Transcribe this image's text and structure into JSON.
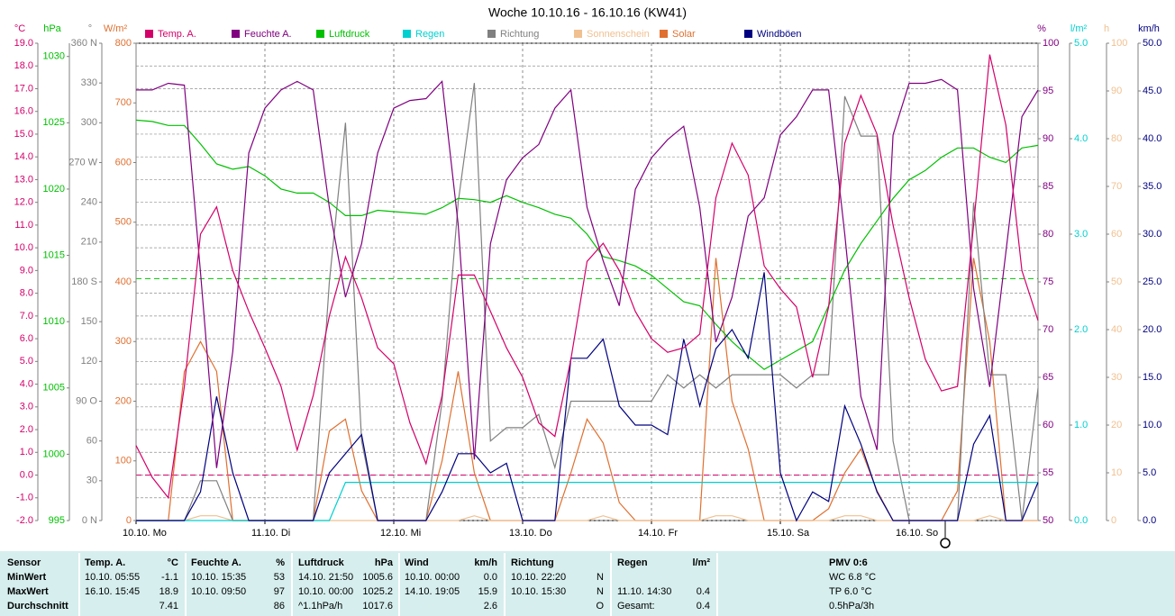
{
  "chart_data": {
    "type": "line",
    "title": "Woche 10.10.16 - 16.10.16 (KW41)",
    "grid": true,
    "x": [
      "10.10. 00:00",
      "10.10. 03:00",
      "10.10. 06:00",
      "10.10. 09:00",
      "10.10. 12:00",
      "10.10. 15:00",
      "10.10. 18:00",
      "10.10. 21:00",
      "11.10. 00:00",
      "11.10. 03:00",
      "11.10. 06:00",
      "11.10. 09:00",
      "11.10. 12:00",
      "11.10. 15:00",
      "11.10. 18:00",
      "11.10. 21:00",
      "12.10. 00:00",
      "12.10. 03:00",
      "12.10. 06:00",
      "12.10. 09:00",
      "12.10. 12:00",
      "12.10. 15:00",
      "12.10. 18:00",
      "12.10. 21:00",
      "13.10. 00:00",
      "13.10. 03:00",
      "13.10. 06:00",
      "13.10. 09:00",
      "13.10. 12:00",
      "13.10. 15:00",
      "13.10. 18:00",
      "13.10. 21:00",
      "14.10. 00:00",
      "14.10. 03:00",
      "14.10. 06:00",
      "14.10. 09:00",
      "14.10. 12:00",
      "14.10. 15:00",
      "14.10. 18:00",
      "14.10. 21:00",
      "15.10. 00:00",
      "15.10. 03:00",
      "15.10. 06:00",
      "15.10. 09:00",
      "15.10. 12:00",
      "15.10. 15:00",
      "15.10. 18:00",
      "15.10. 21:00",
      "16.10. 00:00",
      "16.10. 03:00",
      "16.10. 06:00",
      "16.10. 09:00",
      "16.10. 12:00",
      "16.10. 15:00",
      "16.10. 18:00",
      "16.10. 21:00",
      "16.10. 24:00"
    ],
    "xlim": [
      "10.10. 00:00",
      "16.10. 24:00"
    ],
    "xticks": [
      {
        "value": "10.10. 00:00",
        "label": "10.10. Mo"
      },
      {
        "value": "11.10. 00:00",
        "label": "11.10. Di"
      },
      {
        "value": "12.10. 00:00",
        "label": "12.10. Mi"
      },
      {
        "value": "13.10. 00:00",
        "label": "13.10. Do"
      },
      {
        "value": "14.10. 00:00",
        "label": "14.10. Fr"
      },
      {
        "value": "15.10. 00:00",
        "label": "15.10. Sa"
      },
      {
        "value": "16.10. 00:00",
        "label": "16.10. So"
      }
    ],
    "series": [
      {
        "name": "Temp. A.",
        "unit": "°C",
        "color": "#d4006a",
        "lim": [
          -2,
          19
        ],
        "ref_line": 0,
        "ticks": [
          {
            "value": -2,
            "label": "-2.0"
          },
          {
            "value": -1,
            "label": "-1.0"
          },
          {
            "value": 0,
            "label": "0.0"
          },
          {
            "value": 1,
            "label": "1.0"
          },
          {
            "value": 2,
            "label": "2.0"
          },
          {
            "value": 3,
            "label": "3.0"
          },
          {
            "value": 4,
            "label": "4.0"
          },
          {
            "value": 5,
            "label": "5.0"
          },
          {
            "value": 6,
            "label": "6.0"
          },
          {
            "value": 7,
            "label": "7.0"
          },
          {
            "value": 8,
            "label": "8.0"
          },
          {
            "value": 9,
            "label": "9.0"
          },
          {
            "value": 10,
            "label": "10.0"
          },
          {
            "value": 11,
            "label": "11.0"
          },
          {
            "value": 12,
            "label": "12.0"
          },
          {
            "value": 13,
            "label": "13.0"
          },
          {
            "value": 14,
            "label": "14.0"
          },
          {
            "value": 15,
            "label": "15.0"
          },
          {
            "value": 16,
            "label": "16.0"
          },
          {
            "value": 17,
            "label": "17.0"
          },
          {
            "value": 18,
            "label": "18.0"
          },
          {
            "value": 19,
            "label": "19.0"
          }
        ],
        "values": [
          1.3,
          -0.1,
          -1.0,
          3.9,
          10.6,
          11.8,
          9.0,
          7.2,
          5.6,
          3.9,
          1.1,
          3.5,
          7.0,
          9.6,
          7.8,
          5.6,
          4.9,
          2.3,
          0.5,
          3.5,
          8.8,
          8.8,
          7.2,
          5.6,
          4.3,
          2.3,
          1.7,
          5.1,
          9.4,
          10.2,
          9.0,
          7.2,
          6.0,
          5.4,
          5.6,
          6.2,
          12.2,
          14.6,
          13.2,
          9.2,
          8.2,
          7.4,
          4.3,
          7.4,
          14.6,
          16.7,
          15.0,
          11.0,
          7.8,
          5.1,
          3.7,
          3.9,
          11.0,
          18.5,
          15.4,
          9.0,
          6.8
        ]
      },
      {
        "name": "Feuchte A.",
        "unit": "%",
        "color": "#800080",
        "lim": [
          50,
          100
        ],
        "ticks": [
          50,
          55,
          60,
          65,
          70,
          75,
          80,
          85,
          90,
          95,
          100
        ],
        "values": [
          95.1,
          95.1,
          95.8,
          95.6,
          76,
          55.5,
          67.7,
          88.5,
          93.2,
          95.1,
          96,
          95.1,
          82.8,
          73.4,
          79,
          88.5,
          93.2,
          94,
          94.2,
          96,
          81,
          56.4,
          79,
          85.7,
          88,
          89.4,
          93.2,
          95.1,
          82.8,
          77.2,
          72.5,
          84.7,
          88,
          89.9,
          91.3,
          82.8,
          68.7,
          73.4,
          81.9,
          83.8,
          90.4,
          92.3,
          95.1,
          95.1,
          80,
          63,
          57.4,
          90.4,
          95.8,
          95.8,
          96.2,
          95.1,
          74.3,
          64,
          78.1,
          92.3,
          95.1
        ]
      },
      {
        "name": "Luftdruck",
        "unit": "hPa",
        "color": "#00c000",
        "lim": [
          995,
          1031
        ],
        "ref_line": 1013.25,
        "ticks": [
          995,
          1000,
          1005,
          1010,
          1015,
          1020,
          1025,
          1030
        ],
        "values": [
          1025.2,
          1025.1,
          1024.8,
          1024.8,
          1023.4,
          1021.9,
          1021.5,
          1021.7,
          1021.0,
          1020.0,
          1019.7,
          1019.7,
          1019.0,
          1018.0,
          1018.0,
          1018.4,
          1018.3,
          1018.2,
          1018.1,
          1018.6,
          1019.3,
          1019.2,
          1019.0,
          1019.5,
          1019.0,
          1018.6,
          1018.1,
          1017.8,
          1016.6,
          1014.9,
          1014.6,
          1014.2,
          1013.5,
          1012.5,
          1011.5,
          1011.2,
          1009.8,
          1008.5,
          1007.4,
          1006.4,
          1007.1,
          1007.8,
          1008.5,
          1011.2,
          1013.9,
          1015.9,
          1017.6,
          1019.3,
          1020.7,
          1021.4,
          1022.4,
          1023.1,
          1023.1,
          1022.4,
          1022.0,
          1023.1,
          1023.3
        ]
      },
      {
        "name": "Regen",
        "unit": "l/m²",
        "color": "#00d0d0",
        "lim": [
          0,
          5
        ],
        "ticks": [
          {
            "value": 0,
            "label": "0.0"
          },
          {
            "value": 1,
            "label": "1.0"
          },
          {
            "value": 2,
            "label": "2.0"
          },
          {
            "value": 3,
            "label": "3.0"
          },
          {
            "value": 4,
            "label": "4.0"
          },
          {
            "value": 5,
            "label": "5.0"
          }
        ],
        "values": [
          0,
          0,
          0,
          0,
          0,
          0,
          0,
          0,
          0,
          0,
          0,
          0,
          0,
          0.4,
          0.4,
          0.4,
          0.4,
          0.4,
          0.4,
          0.4,
          0.4,
          0.4,
          0.4,
          0.4,
          0.4,
          0.4,
          0.4,
          0.4,
          0.4,
          0.4,
          0.4,
          0.4,
          0.4,
          0.4,
          0.4,
          0.4,
          0.4,
          0.4,
          0.4,
          0.4,
          0.4,
          0.4,
          0.4,
          0.4,
          0.4,
          0.4,
          0.4,
          0.4,
          0.4,
          0.4,
          0.4,
          0.4,
          0.4,
          0.4,
          0.4,
          0.4,
          0.4
        ]
      },
      {
        "name": "Richtung",
        "unit": "°",
        "color": "#808080",
        "lim": [
          0,
          360
        ],
        "ticks": [
          {
            "value": 0,
            "label": "0 N"
          },
          30,
          60,
          {
            "value": 90,
            "label": "90 O"
          },
          120,
          150,
          {
            "value": 180,
            "label": "180 S"
          },
          210,
          240,
          {
            "value": 270,
            "label": "270 W"
          },
          300,
          330,
          {
            "value": 360,
            "label": "360 N"
          }
        ],
        "values": [
          0,
          0,
          0,
          0,
          30,
          30,
          0,
          0,
          0,
          0,
          0,
          0,
          180,
          300,
          60,
          0,
          0,
          0,
          0,
          90,
          240,
          330,
          60,
          70,
          70,
          80,
          40,
          90,
          90,
          90,
          90,
          90,
          90,
          110,
          100,
          110,
          100,
          110,
          110,
          110,
          110,
          100,
          110,
          110,
          320,
          290,
          290,
          60,
          0,
          0,
          0,
          0,
          240,
          110,
          110,
          0,
          100
        ]
      },
      {
        "name": "Sonnenschein",
        "unit": "h",
        "color": "#f0c090",
        "lim": [
          0,
          100
        ],
        "ticks": [
          0,
          10,
          20,
          30,
          40,
          50,
          60,
          70,
          80,
          90,
          100
        ],
        "values": [
          0,
          0,
          0,
          0,
          1,
          1,
          0,
          0,
          0,
          0,
          0,
          0,
          0,
          0,
          0,
          0,
          0,
          0,
          0,
          0,
          0,
          1,
          0,
          0,
          0,
          0,
          0,
          0,
          0,
          1,
          0,
          0,
          0,
          0,
          0,
          0,
          1,
          1,
          0,
          0,
          0,
          0,
          0,
          0,
          1,
          1,
          0,
          0,
          0,
          0,
          0,
          0,
          0,
          1,
          0,
          0,
          0
        ]
      },
      {
        "name": "Solar",
        "unit": "W/m²",
        "color": "#e07030",
        "lim": [
          0,
          800
        ],
        "ticks": [
          0,
          100,
          200,
          300,
          400,
          500,
          600,
          700,
          800
        ],
        "values": [
          0,
          0,
          0,
          250,
          300,
          250,
          0,
          0,
          0,
          0,
          0,
          0,
          150,
          170,
          50,
          0,
          0,
          0,
          0,
          100,
          250,
          80,
          0,
          0,
          0,
          0,
          0,
          80,
          170,
          130,
          30,
          0,
          0,
          0,
          0,
          0,
          440,
          200,
          120,
          0,
          0,
          0,
          0,
          20,
          80,
          120,
          50,
          0,
          0,
          0,
          0,
          50,
          440,
          300,
          0,
          0,
          0
        ]
      },
      {
        "name": "Windböen",
        "unit": "km/h",
        "color": "#000080",
        "lim": [
          0,
          50
        ],
        "ticks": [
          {
            "value": 0,
            "label": "0.0"
          },
          {
            "value": 5,
            "label": "5.0"
          },
          {
            "value": 10,
            "label": "10.0"
          },
          {
            "value": 15,
            "label": "15.0"
          },
          {
            "value": 20,
            "label": "20.0"
          },
          {
            "value": 25,
            "label": "25.0"
          },
          {
            "value": 30,
            "label": "30.0"
          },
          {
            "value": 35,
            "label": "35.0"
          },
          {
            "value": 40,
            "label": "40.0"
          },
          {
            "value": 45,
            "label": "45.0"
          },
          {
            "value": 50,
            "label": "50.0"
          }
        ],
        "values": [
          0,
          0,
          0,
          0,
          3,
          13,
          5,
          0,
          0,
          0,
          0,
          0,
          5,
          7,
          9,
          0,
          0,
          0,
          0,
          3,
          7,
          7,
          5,
          6,
          0,
          0,
          0,
          17,
          17,
          19,
          12,
          10,
          10,
          9,
          19,
          12,
          18,
          20,
          17,
          26,
          5,
          0,
          3,
          2,
          12,
          8,
          3,
          0,
          0,
          0,
          0,
          0,
          8,
          11,
          0,
          0,
          4
        ]
      }
    ]
  },
  "table": {
    "sensor_label": "Sensor",
    "columns": [
      {
        "title": "Temp. A.",
        "unit": "°C"
      },
      {
        "title": "Feuchte A.",
        "unit": "%"
      },
      {
        "title": "Luftdruck",
        "unit": "hPa"
      },
      {
        "title": "Wind",
        "unit": "km/h"
      },
      {
        "title": "Richtung"
      },
      {
        "title": "Regen",
        "unit": "l/m²"
      },
      {
        "title": "PMV 0:6"
      }
    ],
    "rows": [
      {
        "label": "MinWert",
        "cells": [
          [
            "10.10. 05:55",
            "-1.1"
          ],
          [
            "10.10. 15:35",
            "53"
          ],
          [
            "14.10. 21:50",
            "1005.6"
          ],
          [
            "10.10. 00:00",
            "0.0"
          ],
          [
            "10.10. 22:20",
            "N"
          ],
          null,
          [
            "WC 6.8 °C"
          ]
        ]
      },
      {
        "label": "MaxWert",
        "cells": [
          [
            "16.10. 15:45",
            "18.9"
          ],
          [
            "10.10. 09:50",
            "97"
          ],
          [
            "10.10. 00:00",
            "1025.2"
          ],
          [
            "14.10. 19:05",
            "15.9"
          ],
          [
            "10.10. 15:30",
            "N"
          ],
          [
            "11.10. 14:30",
            "0.4"
          ],
          [
            "TP 6.0 °C"
          ]
        ]
      },
      {
        "label": "Durchschnitt",
        "cells": [
          [
            null,
            "7.41"
          ],
          [
            null,
            "86"
          ],
          [
            "^1.1hPa/h",
            "1017.6"
          ],
          [
            null,
            "2.6"
          ],
          [
            null,
            "O"
          ],
          [
            "Gesamt:",
            "0.4"
          ],
          [
            "0.5hPa/3h"
          ]
        ]
      }
    ]
  }
}
